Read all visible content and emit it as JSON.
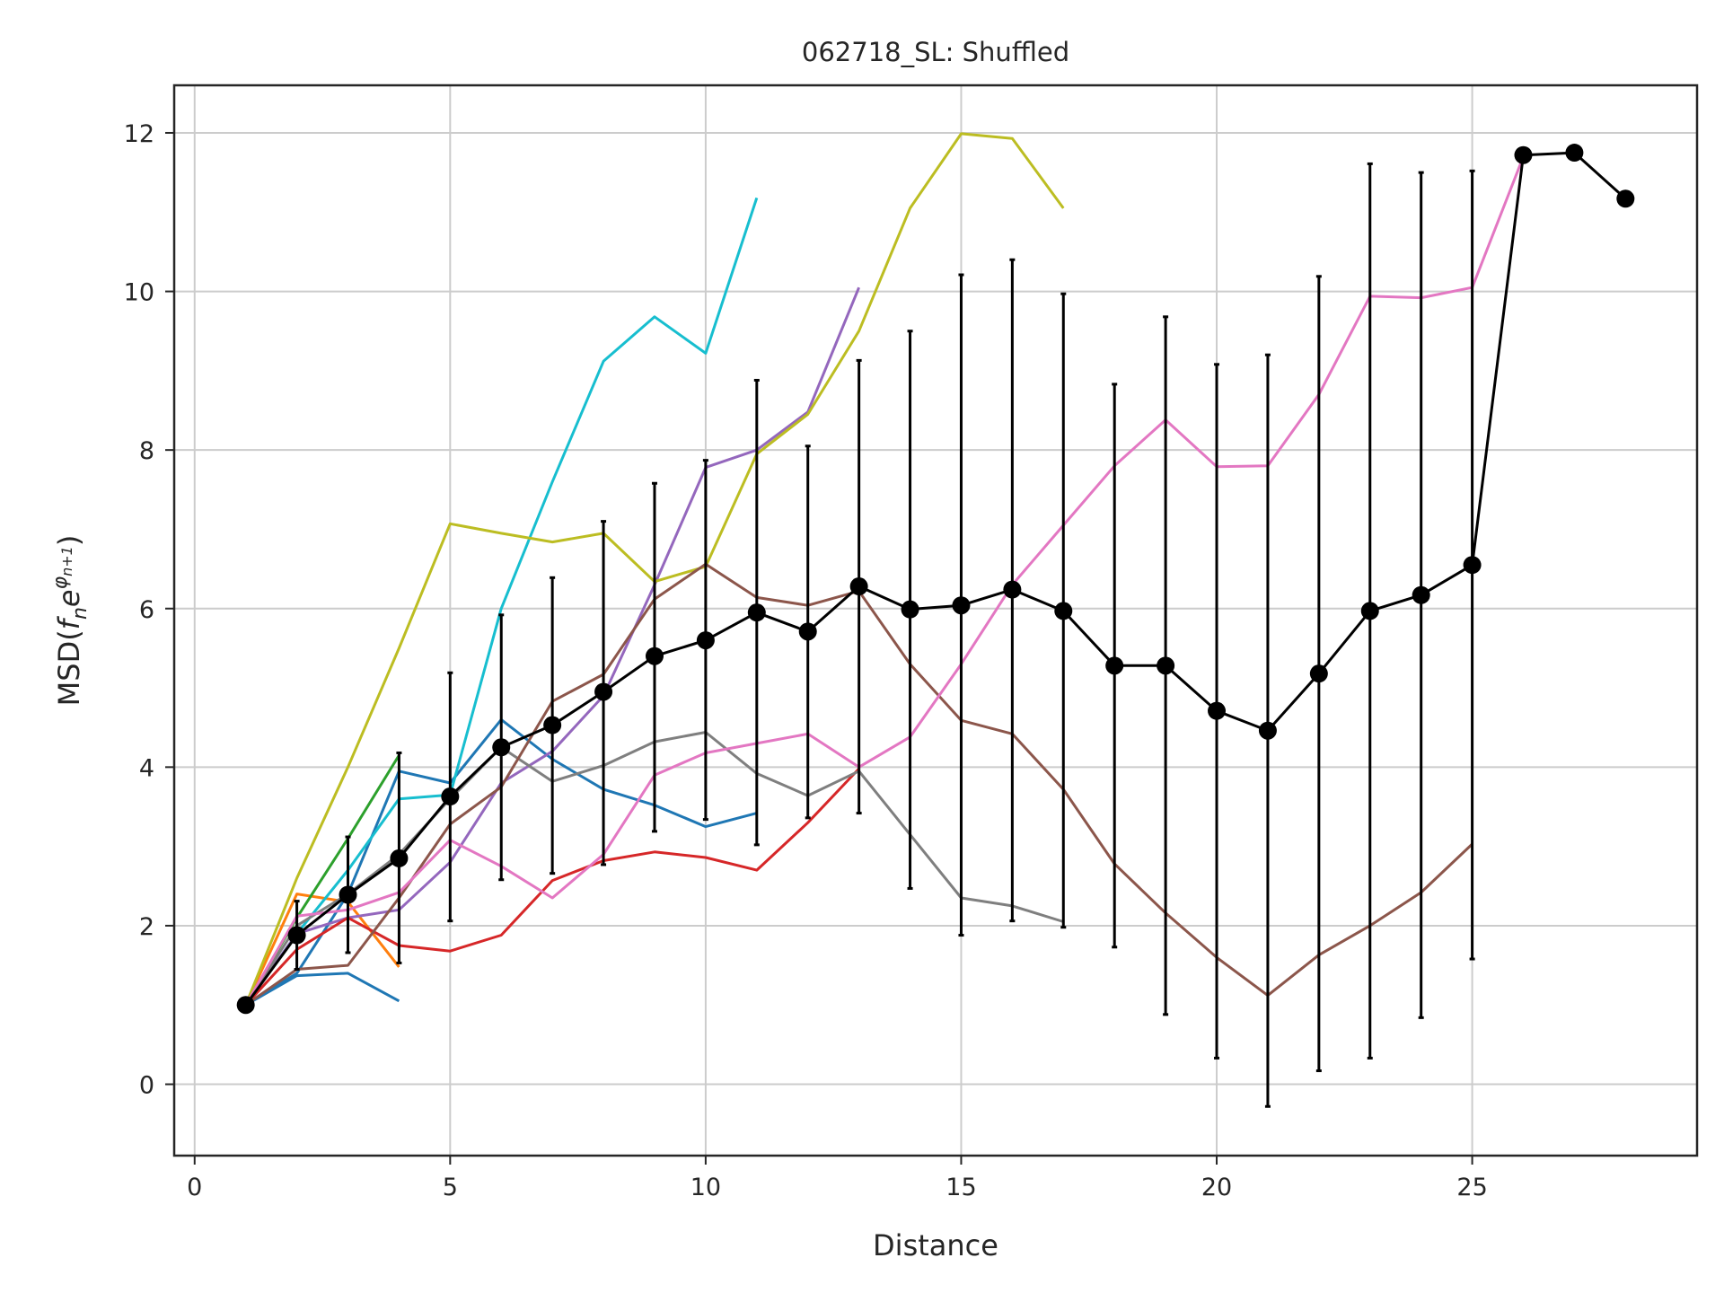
{
  "chart_data": {
    "type": "line",
    "title": "062718_SL: Shuffled",
    "xlabel": "Distance",
    "ylabel_prefix": "MSD(",
    "ylabel_f": "f",
    "ylabel_n": "n",
    "ylabel_e": "e",
    "ylabel_sup": "φ",
    "ylabel_sup_sub": "n+1",
    "ylabel_suffix": ")",
    "xlim": [
      -0.4,
      29.4
    ],
    "ylim": [
      -0.9,
      12.6
    ],
    "xticks": [
      0,
      5,
      10,
      15,
      20,
      25
    ],
    "yticks": [
      0,
      2,
      4,
      6,
      8,
      10,
      12
    ],
    "grid": true,
    "legend": "none",
    "series": [
      {
        "color": "#1f77b4",
        "x": [
          1,
          2,
          3,
          4
        ],
        "y": [
          1.0,
          1.37,
          1.4,
          1.05
        ]
      },
      {
        "color": "#ff7f0e",
        "x": [
          1,
          2,
          3,
          4
        ],
        "y": [
          1.0,
          2.4,
          2.3,
          1.48
        ]
      },
      {
        "color": "#2ca02c",
        "x": [
          1,
          2,
          3,
          4
        ],
        "y": [
          1.0,
          2.1,
          3.1,
          4.15
        ]
      },
      {
        "color": "#1f77b4",
        "x": [
          1,
          2,
          3,
          4,
          5,
          6,
          7,
          8,
          9,
          10,
          11
        ],
        "y": [
          1.0,
          1.4,
          2.4,
          3.95,
          3.8,
          4.6,
          4.1,
          3.72,
          3.52,
          3.25,
          3.42
        ]
      },
      {
        "color": "#17becf",
        "x": [
          1,
          2,
          3,
          4,
          5,
          6,
          7,
          8,
          9,
          10,
          11
        ],
        "y": [
          1.0,
          1.9,
          2.7,
          3.6,
          3.65,
          6.0,
          7.6,
          9.12,
          9.68,
          9.22,
          11.18
        ]
      },
      {
        "color": "#9467bd",
        "x": [
          1,
          2,
          3,
          4,
          5,
          6,
          7,
          8,
          9,
          10,
          11,
          12,
          13
        ],
        "y": [
          1.0,
          1.9,
          2.1,
          2.2,
          2.8,
          3.8,
          4.2,
          4.9,
          6.3,
          7.78,
          8.0,
          8.48,
          10.05
        ]
      },
      {
        "color": "#d62728",
        "x": [
          1,
          2,
          3,
          4,
          5,
          6,
          7,
          8,
          9,
          10,
          11,
          12,
          13
        ],
        "y": [
          1.0,
          1.7,
          2.1,
          1.75,
          1.68,
          1.88,
          2.57,
          2.82,
          2.93,
          2.86,
          2.7,
          3.3,
          3.98
        ]
      },
      {
        "color": "#7f7f7f",
        "x": [
          1,
          2,
          3,
          4,
          5,
          6,
          7,
          8,
          9,
          10,
          11,
          12,
          13,
          14,
          15,
          16,
          17
        ],
        "y": [
          1.0,
          2.0,
          2.4,
          2.9,
          3.6,
          4.25,
          3.82,
          4.02,
          4.32,
          4.44,
          3.92,
          3.64,
          3.95,
          3.15,
          2.35,
          2.25,
          2.05
        ]
      },
      {
        "color": "#bcbd22",
        "x": [
          1,
          2,
          3,
          4,
          5,
          6,
          7,
          8,
          9,
          10,
          11,
          12,
          13,
          14,
          15,
          16,
          17
        ],
        "y": [
          1.0,
          2.6,
          4.0,
          5.5,
          7.07,
          6.95,
          6.84,
          6.95,
          6.34,
          6.53,
          7.95,
          8.45,
          9.5,
          11.05,
          11.99,
          11.93,
          11.05
        ]
      },
      {
        "color": "#8c564b",
        "x": [
          1,
          2,
          3,
          4,
          5,
          6,
          7,
          8,
          9,
          10,
          11,
          12,
          13,
          14,
          15,
          16,
          17,
          18,
          19,
          20,
          21,
          22,
          23,
          24,
          25
        ],
        "y": [
          1.0,
          1.45,
          1.5,
          2.35,
          3.28,
          3.75,
          4.83,
          5.17,
          6.12,
          6.56,
          6.14,
          6.04,
          6.22,
          5.3,
          4.59,
          4.42,
          3.72,
          2.78,
          2.16,
          1.6,
          1.12,
          1.63,
          2.0,
          2.42,
          3.03
        ]
      },
      {
        "color": "#e377c2",
        "x": [
          1,
          2,
          3,
          4,
          5,
          6,
          7,
          8,
          9,
          10,
          11,
          12,
          13,
          14,
          15,
          16,
          17,
          18,
          19,
          20,
          21,
          22,
          23,
          24,
          25,
          26
        ],
        "y": [
          1.0,
          2.12,
          2.2,
          2.42,
          3.08,
          2.75,
          2.35,
          2.9,
          3.9,
          4.18,
          4.3,
          4.42,
          4.0,
          4.38,
          5.3,
          6.3,
          7.05,
          7.8,
          8.38,
          7.79,
          7.8,
          8.7,
          9.94,
          9.92,
          10.05,
          11.7
        ]
      }
    ],
    "mean_series": {
      "color": "#000000",
      "x": [
        1,
        2,
        3,
        4,
        5,
        6,
        7,
        8,
        9,
        10,
        11,
        12,
        13,
        14,
        15,
        16,
        17,
        18,
        19,
        20,
        21,
        22,
        23,
        24,
        25,
        26,
        27,
        28
      ],
      "y": [
        1.0,
        1.88,
        2.39,
        2.85,
        3.63,
        4.25,
        4.53,
        4.95,
        5.4,
        5.6,
        5.95,
        5.71,
        6.28,
        5.99,
        6.04,
        6.24,
        5.97,
        5.28,
        5.28,
        4.71,
        4.46,
        5.18,
        5.97,
        6.17,
        6.55,
        11.72,
        11.75,
        11.17
      ],
      "yerr_lower": [
        null,
        1.45,
        1.66,
        1.53,
        2.06,
        2.58,
        2.66,
        2.77,
        3.19,
        3.34,
        3.02,
        3.36,
        3.42,
        2.47,
        1.88,
        2.06,
        1.98,
        1.73,
        0.88,
        0.33,
        -0.28,
        0.17,
        0.33,
        0.84,
        1.58,
        null,
        null,
        null
      ],
      "yerr_upper": [
        null,
        2.31,
        3.12,
        4.18,
        5.19,
        5.92,
        6.39,
        7.1,
        7.58,
        7.87,
        8.88,
        8.05,
        9.13,
        9.5,
        10.21,
        10.4,
        9.97,
        8.83,
        9.68,
        9.08,
        9.2,
        10.19,
        11.61,
        11.5,
        11.52,
        null,
        null,
        null
      ]
    }
  }
}
